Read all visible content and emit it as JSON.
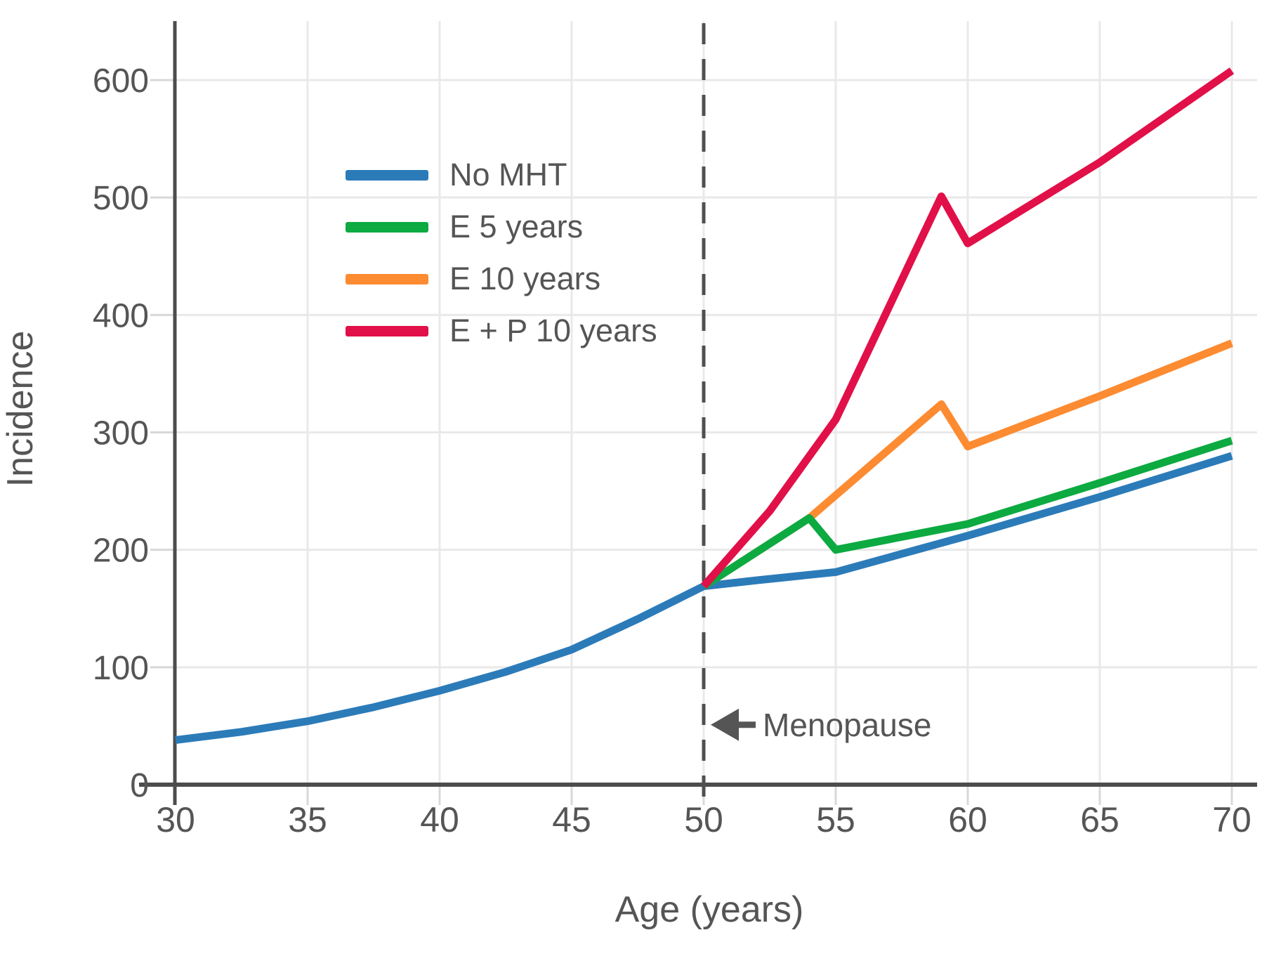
{
  "chart_data": {
    "type": "line",
    "title": "",
    "xlabel": "Age (years)",
    "ylabel": "Incidence",
    "x_ticks": [
      30,
      35,
      40,
      45,
      50,
      55,
      60,
      65,
      70
    ],
    "y_ticks": [
      0,
      100,
      200,
      300,
      400,
      500,
      600
    ],
    "xlim": [
      30,
      71
    ],
    "ylim": [
      0,
      650
    ],
    "grid": true,
    "legend_position": "upper-left-inside",
    "menopause_line": {
      "x": 50,
      "style": "dashed",
      "color": "#4f4f4f"
    },
    "annotation": {
      "text": "Menopause",
      "arrow": "left",
      "x": 50,
      "y": 51
    },
    "series": [
      {
        "name": "No MHT",
        "color": "#2c7bb9",
        "points": [
          [
            30,
            38
          ],
          [
            32.5,
            45
          ],
          [
            35,
            54
          ],
          [
            37.5,
            66
          ],
          [
            40,
            80
          ],
          [
            42.5,
            96
          ],
          [
            45,
            115
          ],
          [
            47.5,
            141
          ],
          [
            50,
            169
          ],
          [
            52,
            174
          ],
          [
            55,
            181
          ],
          [
            60,
            212
          ],
          [
            65,
            245
          ],
          [
            70,
            280
          ]
        ]
      },
      {
        "name": "E 5 years",
        "color": "#0caa41",
        "points": [
          [
            50,
            169
          ],
          [
            54,
            227
          ],
          [
            55,
            200
          ],
          [
            60,
            222
          ],
          [
            65,
            257
          ],
          [
            70,
            293
          ]
        ]
      },
      {
        "name": "E 10 years",
        "color": "#fd8b31",
        "points": [
          [
            50,
            169
          ],
          [
            54,
            227
          ],
          [
            59,
            324
          ],
          [
            60,
            288
          ],
          [
            65,
            331
          ],
          [
            70,
            376
          ]
        ]
      },
      {
        "name": "E + P 10 years",
        "color": "#e11048",
        "points": [
          [
            50,
            169
          ],
          [
            52.5,
            233
          ],
          [
            55,
            311
          ],
          [
            59,
            501
          ],
          [
            60,
            461
          ],
          [
            65,
            530
          ],
          [
            70,
            608
          ]
        ]
      }
    ],
    "style": {
      "axis_color": "#4c4c4c",
      "grid_color": "#e9e9e9",
      "tick_color": "#d8d8d8",
      "text_color": "#555555",
      "annotation_color": "#555555"
    }
  }
}
